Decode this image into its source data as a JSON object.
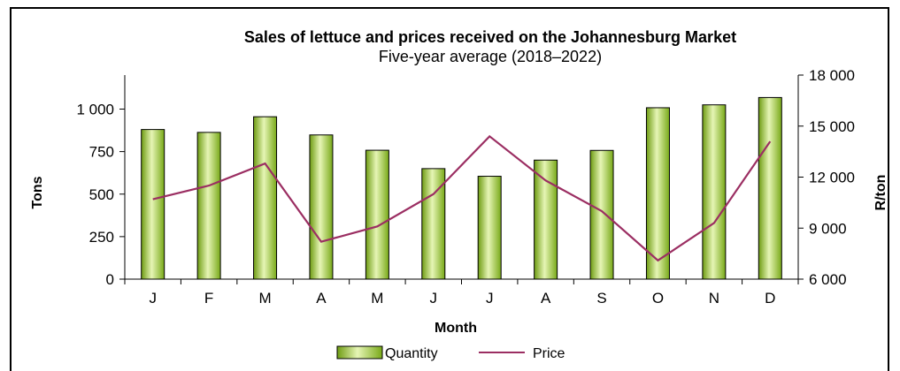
{
  "chart_data": {
    "type": "bar+line",
    "title": "Sales of lettuce and prices received on the Johannesburg Market",
    "subtitle": "Five-year average (2018–2022)",
    "xlabel": "Month",
    "ylabel_left": "Tons",
    "ylabel_right": "R/ton",
    "categories": [
      "J",
      "F",
      "M",
      "A",
      "M",
      "J",
      "J",
      "A",
      "S",
      "O",
      "N",
      "D"
    ],
    "ylim_left": [
      0,
      1200
    ],
    "yticks_left": [
      0,
      250,
      500,
      750,
      1000
    ],
    "ytick_labels_left": [
      "0",
      "250",
      "500",
      "750",
      "1 000"
    ],
    "ylim_right": [
      6000,
      18000
    ],
    "yticks_right": [
      6000,
      9000,
      12000,
      15000,
      18000
    ],
    "ytick_labels_right": [
      "6 000",
      "9 000",
      "12 000",
      "15 000",
      "18 000"
    ],
    "grid": false,
    "legend_position": "bottom",
    "series": [
      {
        "name": "Quantity",
        "type": "bar",
        "axis": "left",
        "color": "#8dc21f",
        "values": [
          880,
          863,
          955,
          848,
          758,
          650,
          605,
          700,
          757,
          1008,
          1025,
          1068
        ]
      },
      {
        "name": "Price",
        "type": "line",
        "axis": "right",
        "color": "#9b2e62",
        "values": [
          10700,
          11500,
          12800,
          8200,
          9100,
          11000,
          14400,
          11800,
          10000,
          7100,
          9300,
          14100
        ]
      }
    ]
  }
}
